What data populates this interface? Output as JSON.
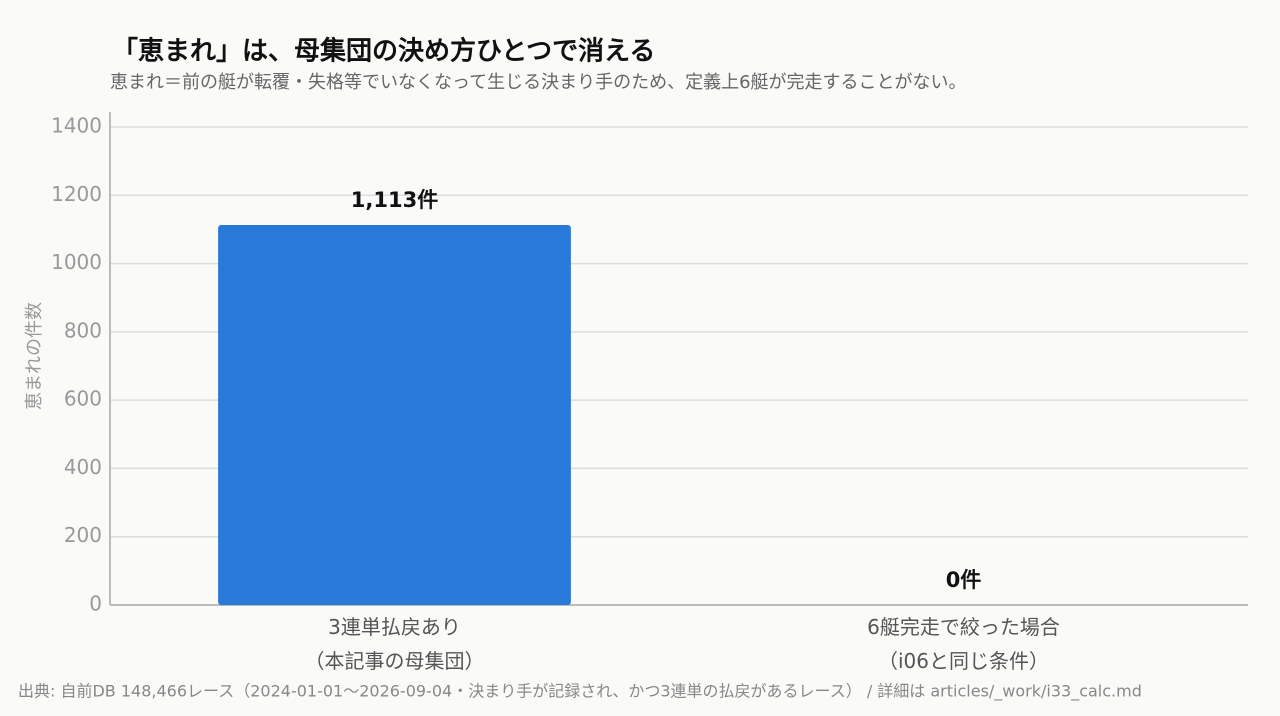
{
  "chart_data": {
    "type": "bar",
    "title": "「恵まれ」は、母集団の決め方ひとつで消える",
    "subtitle": "恵まれ＝前の艇が転覆・失格等でいなくなって生じる決まり手のため、定義上6艇が完走することがない。",
    "y_label": "恵まれの件数",
    "categories": [
      "3連単払戻あり\n（本記事の母集団）",
      "6艇完走で絞った場合\n（i06と同じ条件）"
    ],
    "values": [
      1113,
      0
    ],
    "value_labels": [
      "1,113件",
      "0件"
    ],
    "color": "#2979d8",
    "ylim": [
      0,
      1400
    ],
    "yticks": [
      0,
      200,
      400,
      600,
      800,
      1000,
      1200,
      1400
    ],
    "grid": true,
    "source": "出典: 自前DB 148,466レース（2024-01-01〜2026-09-04・決まり手が記録され、かつ3連単の払戻があるレース） / 詳細は articles/_work/i33_calc.md"
  }
}
